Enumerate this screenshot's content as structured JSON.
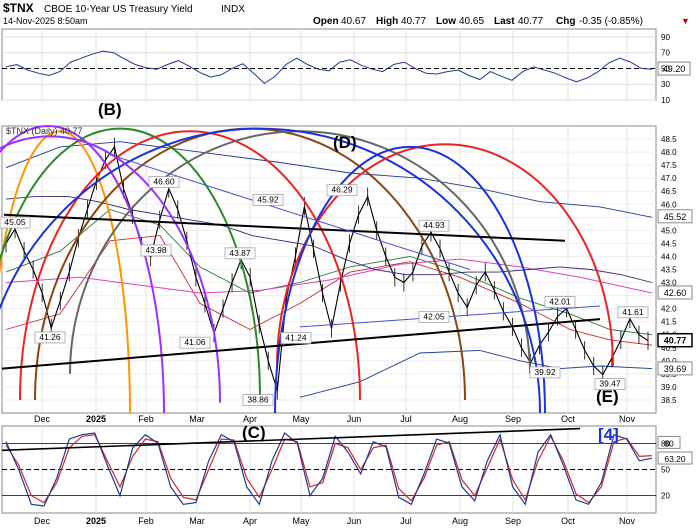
{
  "header": {
    "ticker": "$TNX",
    "name": "CBOE 10-Year US Treasury Yield",
    "exchange": "INDX",
    "datetime": "14-Nov-2025 8:50am",
    "open_label": "Open",
    "open": "40.67",
    "high_label": "High",
    "high": "40.77",
    "low_label": "Low",
    "low": "40.65",
    "last_label": "Last",
    "last": "40.77",
    "chg_label": "Chg",
    "chg": "-0.35 (-0.85%)",
    "chg_marker": "▼"
  },
  "legend": {
    "label": "$TNX (Daily) 40.77"
  },
  "colors": {
    "price": "#000000",
    "up": "#000000",
    "rsi": "#1f3a93",
    "ma50": "#2e7d32",
    "ma200": "#e040c0",
    "bollinger": "#1f3a93",
    "envelope": "#cc2a2a",
    "cycle_red": "#ee2222",
    "cycle_blue": "#1a33dd",
    "cycle_purple": "#9b30ff",
    "cycle_orange": "#ff9500",
    "cycle_green": "#2a8a2a",
    "cycle_brown": "#8b4513",
    "cycle_gray": "#666666",
    "trend": "#000000",
    "wave_label": "#000000",
    "badge_bg": "#000000"
  },
  "wave_labels": [
    "(B)",
    "(D)",
    "(C)",
    "(E)"
  ],
  "cycle_label": "[4]",
  "chart_data": {
    "type": "line",
    "panels": [
      "rsi",
      "price",
      "stochastic"
    ],
    "x_tick_labels": [
      "Dec",
      "2025",
      "Feb",
      "Mar",
      "Apr",
      "May",
      "Jun",
      "Jul",
      "Aug",
      "Sep",
      "Oct",
      "Nov"
    ],
    "price": {
      "ylim": [
        38.0,
        49.0
      ],
      "y_ticks": [
        38.5,
        39.0,
        39.5,
        40.0,
        40.5,
        41.0,
        41.5,
        42.0,
        42.5,
        43.0,
        43.5,
        44.0,
        44.5,
        45.0,
        45.5,
        46.0,
        46.5,
        47.0,
        47.5,
        48.0,
        48.5
      ],
      "series": [
        {
          "name": "$TNX (Daily)",
          "values": [
            44.5,
            45.05,
            44.2,
            43.5,
            42.6,
            41.26,
            42.3,
            43.4,
            44.7,
            45.8,
            46.9,
            47.7,
            48.2,
            46.6,
            45.6,
            44.4,
            43.98,
            45.4,
            46.6,
            45.8,
            44.6,
            43.2,
            42.2,
            41.06,
            42.0,
            43.0,
            43.87,
            43.2,
            41.4,
            40.0,
            38.86,
            42.4,
            44.0,
            45.92,
            44.3,
            42.6,
            41.24,
            43.0,
            44.5,
            45.6,
            46.29,
            45.0,
            44.0,
            43.2,
            43.0,
            43.4,
            44.4,
            44.93,
            44.3,
            43.4,
            42.6,
            42.05,
            42.9,
            43.4,
            42.7,
            41.9,
            41.3,
            40.5,
            39.92,
            40.6,
            41.1,
            41.7,
            42.01,
            41.2,
            40.4,
            39.8,
            39.47,
            40.1,
            40.8,
            41.61,
            41.0,
            40.77
          ]
        },
        {
          "name": "",
          "values": [
            46.2,
            46.3,
            46.3,
            46.1,
            45.8,
            45.6,
            45.4,
            45.2,
            44.8,
            44.6,
            44.4,
            43.9,
            43.5,
            43.3,
            43.3,
            43.4,
            43.4,
            43.5,
            43.6,
            43.5,
            43.3,
            43.0
          ]
        }
      ],
      "value_labels": [
        {
          "text": "45.05",
          "value": 45.05
        },
        {
          "text": "41.26",
          "value": 41.26
        },
        {
          "text": "46.60",
          "value": 46.6
        },
        {
          "text": "43.98",
          "value": 43.98
        },
        {
          "text": "41.06",
          "value": 41.06
        },
        {
          "text": "43.87",
          "value": 43.87
        },
        {
          "text": "45.92",
          "value": 45.92
        },
        {
          "text": "38.86",
          "value": 38.86
        },
        {
          "text": "41.24",
          "value": 41.24
        },
        {
          "text": "46.29",
          "value": 46.29
        },
        {
          "text": "44.93",
          "value": 44.93
        },
        {
          "text": "42.05",
          "value": 42.05
        },
        {
          "text": "42.01",
          "value": 42.01
        },
        {
          "text": "39.92",
          "value": 39.92
        },
        {
          "text": "39.47",
          "value": 39.47
        },
        {
          "text": "41.61",
          "value": 41.61
        }
      ],
      "right_badges": [
        {
          "text": "45.52",
          "value": 45.52,
          "kind": "outline"
        },
        {
          "text": "42.60",
          "value": 42.6,
          "kind": "outline"
        },
        {
          "text": "40.77",
          "value": 40.77,
          "kind": "filled"
        },
        {
          "text": "39.69",
          "value": 39.69,
          "kind": "outline"
        }
      ]
    },
    "rsi": {
      "ylim": [
        10,
        100
      ],
      "y_ticks": [
        10,
        30,
        50,
        70,
        90
      ],
      "last_badge": "49.20",
      "values": [
        52,
        55,
        48,
        44,
        41,
        46,
        58,
        63,
        68,
        72,
        70,
        62,
        55,
        51,
        49,
        55,
        60,
        53,
        45,
        39,
        42,
        50,
        56,
        44,
        31,
        40,
        55,
        63,
        55,
        49,
        47,
        58,
        61,
        54,
        49,
        46,
        55,
        58,
        50,
        44,
        43,
        46,
        48,
        41,
        36,
        46,
        40,
        35,
        46,
        52,
        48,
        44,
        38,
        33,
        38,
        46,
        57,
        63,
        58,
        50,
        49
      ]
    },
    "stochastic": {
      "ylim": [
        0,
        100
      ],
      "y_ticks": [
        20,
        50,
        80
      ],
      "badges": [
        "80",
        "63.20"
      ],
      "k_values": [
        82,
        50,
        10,
        8,
        40,
        85,
        90,
        92,
        55,
        20,
        75,
        90,
        80,
        30,
        10,
        12,
        60,
        90,
        82,
        30,
        10,
        60,
        92,
        80,
        20,
        40,
        88,
        70,
        45,
        82,
        76,
        18,
        10,
        45,
        85,
        80,
        30,
        14,
        60,
        90,
        30,
        10,
        70,
        90,
        55,
        15,
        10,
        35,
        90,
        85,
        60,
        63
      ],
      "d_values": [
        78,
        55,
        20,
        12,
        35,
        75,
        88,
        90,
        60,
        30,
        65,
        85,
        82,
        40,
        18,
        15,
        50,
        85,
        84,
        40,
        18,
        50,
        85,
        82,
        30,
        35,
        80,
        75,
        50,
        75,
        78,
        28,
        14,
        40,
        78,
        82,
        38,
        20,
        52,
        85,
        38,
        15,
        60,
        88,
        60,
        22,
        12,
        30,
        82,
        86,
        65,
        66
      ]
    }
  }
}
